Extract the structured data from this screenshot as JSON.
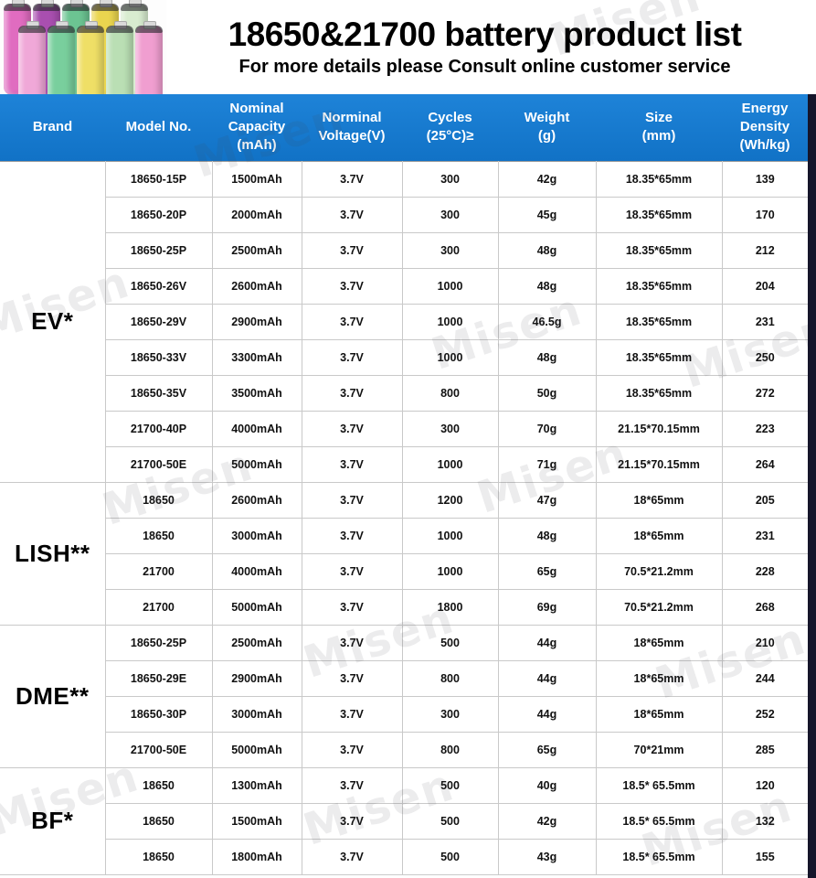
{
  "header": {
    "title": "18650&21700 battery product list",
    "subtitle": "For more details please Consult online customer service"
  },
  "watermark_text": "Misen",
  "table": {
    "columns": [
      "Brand",
      "Model No.",
      "Nominal\nCapacity\n(mAh)",
      "Norminal\nVoltage(V)",
      "Cycles\n(25°C)≥",
      "Weight\n(g)",
      "Size\n(mm)",
      "Energy\nDensity\n(Wh/kg)"
    ],
    "groups": [
      {
        "brand": "EV*",
        "rows": [
          [
            "18650-15P",
            "1500mAh",
            "3.7V",
            "300",
            "42g",
            "18.35*65mm",
            "139"
          ],
          [
            "18650-20P",
            "2000mAh",
            "3.7V",
            "300",
            "45g",
            "18.35*65mm",
            "170"
          ],
          [
            "18650-25P",
            "2500mAh",
            "3.7V",
            "300",
            "48g",
            "18.35*65mm",
            "212"
          ],
          [
            "18650-26V",
            "2600mAh",
            "3.7V",
            "1000",
            "48g",
            "18.35*65mm",
            "204"
          ],
          [
            "18650-29V",
            "2900mAh",
            "3.7V",
            "1000",
            "46.5g",
            "18.35*65mm",
            "231"
          ],
          [
            "18650-33V",
            "3300mAh",
            "3.7V",
            "1000",
            "48g",
            "18.35*65mm",
            "250"
          ],
          [
            "18650-35V",
            "3500mAh",
            "3.7V",
            "800",
            "50g",
            "18.35*65mm",
            "272"
          ],
          [
            "21700-40P",
            "4000mAh",
            "3.7V",
            "300",
            "70g",
            "21.15*70.15mm",
            "223"
          ],
          [
            "21700-50E",
            "5000mAh",
            "3.7V",
            "1000",
            "71g",
            "21.15*70.15mm",
            "264"
          ]
        ]
      },
      {
        "brand": "LISH**",
        "rows": [
          [
            "18650",
            "2600mAh",
            "3.7V",
            "1200",
            "47g",
            "18*65mm",
            "205"
          ],
          [
            "18650",
            "3000mAh",
            "3.7V",
            "1000",
            "48g",
            "18*65mm",
            "231"
          ],
          [
            "21700",
            "4000mAh",
            "3.7V",
            "1000",
            "65g",
            "70.5*21.2mm",
            "228"
          ],
          [
            "21700",
            "5000mAh",
            "3.7V",
            "1800",
            "69g",
            "70.5*21.2mm",
            "268"
          ]
        ]
      },
      {
        "brand": "DME**",
        "rows": [
          [
            "18650-25P",
            "2500mAh",
            "3.7V",
            "500",
            "44g",
            "18*65mm",
            "210"
          ],
          [
            "18650-29E",
            "2900mAh",
            "3.7V",
            "800",
            "44g",
            "18*65mm",
            "244"
          ],
          [
            "18650-30P",
            "3000mAh",
            "3.7V",
            "300",
            "44g",
            "18*65mm",
            "252"
          ],
          [
            "21700-50E",
            "5000mAh",
            "3.7V",
            "800",
            "65g",
            "70*21mm",
            "285"
          ]
        ]
      },
      {
        "brand": "BF*",
        "rows": [
          [
            "18650",
            "1300mAh",
            "3.7V",
            "500",
            "40g",
            "18.5* 65.5mm",
            "120"
          ],
          [
            "18650",
            "1500mAh",
            "3.7V",
            "500",
            "42g",
            "18.5* 65.5mm",
            "132"
          ],
          [
            "18650",
            "1800mAh",
            "3.7V",
            "500",
            "43g",
            "18.5* 65.5mm",
            "155"
          ]
        ]
      }
    ]
  }
}
